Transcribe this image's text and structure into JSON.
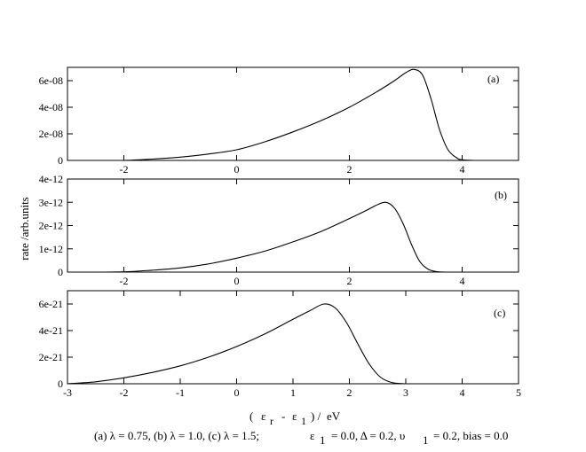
{
  "figure": {
    "ylabel": "rate /arb.units",
    "xlabel": "( ε r - ε 1 ) / eV",
    "xlabel_parts": {
      "open": "(",
      "eps1": "ε",
      "sub1": "r",
      "minus": "-",
      "eps2": "ε",
      "sub2": "1",
      "close": ") /",
      "unit": "eV"
    },
    "caption": "(a)  λ = 0.75,  (b)  λ = 1.0,  (c)  λ = 1.5;    ε 1 = 0.0, Δ = 0.2, υ 1 = 0.2,  bias = 0.0",
    "caption_parts": {
      "params": "(a)  λ = 0.75,  (b)  λ = 1.0,  (c)  λ = 1.5;",
      "eps": "ε",
      "eps_sub": "1",
      "delta": "= 0.0, Δ = 0.2, υ",
      "ups_sub": "1",
      "bias": "= 0.2,  bias = 0.0"
    }
  },
  "chart_data": [
    {
      "type": "line",
      "panel_label": "(a)",
      "xlim": [
        -3,
        5
      ],
      "ylim": [
        0,
        7e-08
      ],
      "x_ticks": [
        -2,
        0,
        2,
        4
      ],
      "x_tick_labels": [
        "-2",
        "0",
        "2",
        "4"
      ],
      "y_ticks": [
        0,
        2e-08,
        4e-08,
        6e-08
      ],
      "y_tick_labels": [
        "0",
        "2e-08",
        "4e-08",
        "6e-08"
      ],
      "grid": false,
      "series": [
        {
          "x": [
            -3,
            -2.5,
            -2,
            -1.5,
            -1,
            -0.5,
            0,
            0.5,
            1,
            1.5,
            2,
            2.5,
            2.8,
            3.0,
            3.15,
            3.3,
            3.45,
            3.6,
            3.75,
            3.9,
            4.0,
            4.2
          ],
          "values": [
            0,
            0,
            0,
            1e-09,
            2.5e-09,
            4.8e-09,
            8e-09,
            1.4e-08,
            2.15e-08,
            3e-08,
            4e-08,
            5.2e-08,
            6e-08,
            6.6e-08,
            6.85e-08,
            6.4e-08,
            4.6e-08,
            2.3e-08,
            8e-09,
            2e-09,
            5e-10,
            0
          ]
        }
      ]
    },
    {
      "type": "line",
      "panel_label": "(b)",
      "xlim": [
        -3,
        5
      ],
      "ylim": [
        0,
        4e-12
      ],
      "x_ticks": [
        -2,
        0,
        2,
        4
      ],
      "x_tick_labels": [
        "-2",
        "0",
        "2",
        "4"
      ],
      "y_ticks": [
        0,
        1e-12,
        2e-12,
        3e-12,
        4e-12
      ],
      "y_tick_labels": [
        "0",
        "1e-12",
        "2e-12",
        "3e-12",
        "4e-12"
      ],
      "grid": false,
      "series": [
        {
          "x": [
            -3,
            -2.5,
            -2,
            -1.5,
            -1,
            -0.5,
            0,
            0.5,
            1,
            1.5,
            2,
            2.3,
            2.5,
            2.65,
            2.8,
            2.95,
            3.1,
            3.25,
            3.4,
            3.55,
            3.7
          ],
          "values": [
            0,
            0,
            1e-14,
            8e-14,
            1.8e-13,
            3.5e-13,
            6e-13,
            9e-13,
            1.3e-12,
            1.75e-12,
            2.3e-12,
            2.65e-12,
            2.9e-12,
            3e-12,
            2.75e-12,
            2.1e-12,
            1.2e-12,
            4.5e-13,
            1.2e-13,
            2e-14,
            0
          ]
        }
      ]
    },
    {
      "type": "line",
      "panel_label": "(c)",
      "xlim": [
        -3,
        5
      ],
      "ylim": [
        0,
        7e-21
      ],
      "x_ticks": [
        -3,
        -2,
        -1,
        0,
        1,
        2,
        3,
        4,
        5
      ],
      "x_tick_labels": [
        "-3",
        "-2",
        "-1",
        "0",
        "1",
        "2",
        "3",
        "4",
        "5"
      ],
      "y_ticks": [
        0,
        2e-21,
        4e-21,
        6e-21
      ],
      "y_tick_labels": [
        "0",
        "2e-21",
        "4e-21",
        "6e-21"
      ],
      "grid": false,
      "series": [
        {
          "x": [
            -3,
            -2.5,
            -2,
            -1.5,
            -1,
            -0.5,
            0,
            0.5,
            1,
            1.3,
            1.55,
            1.75,
            1.95,
            2.15,
            2.35,
            2.55,
            2.75,
            3.0
          ],
          "values": [
            0,
            1.5e-22,
            4.5e-22,
            8.5e-22,
            1.35e-21,
            2e-21,
            2.8e-21,
            3.75e-21,
            4.85e-21,
            5.5e-21,
            6e-21,
            5.7e-21,
            4.6e-21,
            3e-21,
            1.5e-21,
            5e-22,
            1e-22,
            0
          ]
        }
      ]
    }
  ]
}
